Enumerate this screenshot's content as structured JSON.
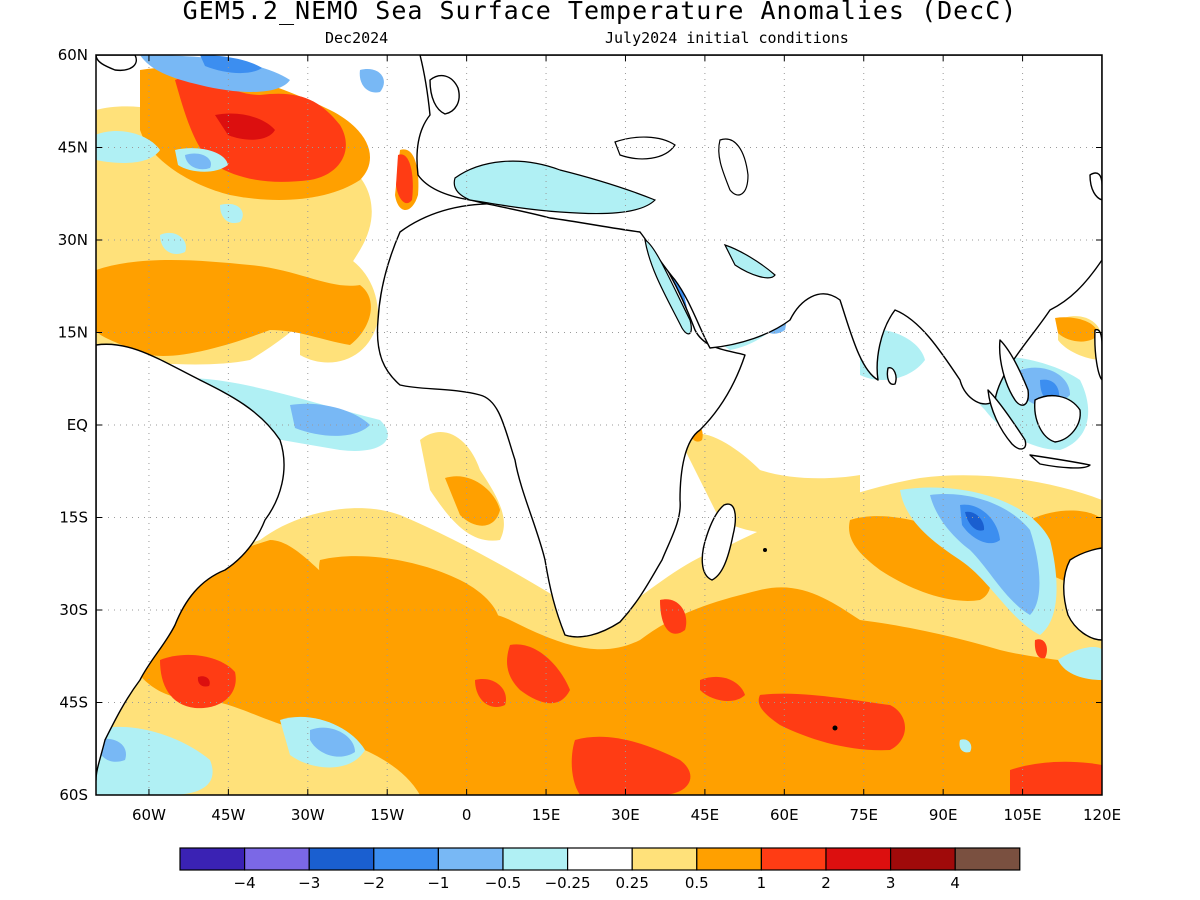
{
  "title": "GEM5.2_NEMO Sea Surface Temperature Anomalies (DecC)",
  "subtitle_left": "Dec2024",
  "subtitle_right": "July2024 initial conditions",
  "lat_labels": [
    "60N",
    "45N",
    "30N",
    "15N",
    "EQ",
    "15S",
    "30S",
    "45S",
    "60S"
  ],
  "lon_labels": [
    "60W",
    "45W",
    "30W",
    "15W",
    "0",
    "15E",
    "30E",
    "45E",
    "60E",
    "75E",
    "90E",
    "105E",
    "120E"
  ],
  "map_extent": {
    "lon_min": -70,
    "lon_max": 120,
    "lat_min": -60,
    "lat_max": 60
  },
  "colorbar": {
    "colors": [
      "#3a22b4",
      "#7b68e6",
      "#1a5fd0",
      "#3c8ef0",
      "#78b8f5",
      "#b0f0f4",
      "#ffffff",
      "#ffe17a",
      "#ffa000",
      "#ff3c14",
      "#dc0f0f",
      "#a00a0a",
      "#7a5040"
    ],
    "labels": [
      "−4",
      "−3",
      "−2",
      "−1",
      "−0.5",
      "−0.25",
      "0.25",
      "0.5",
      "1",
      "2",
      "3",
      "4"
    ]
  },
  "anomaly_colors": {
    "strong_warm": "#ff3c14",
    "warm": "#ffa000",
    "slight_warm": "#ffe17a",
    "slight_cool": "#b0f0f4",
    "cool": "#78b8f5",
    "moderate_cool": "#3c8ef0",
    "strong_cool": "#1a5fd0"
  }
}
